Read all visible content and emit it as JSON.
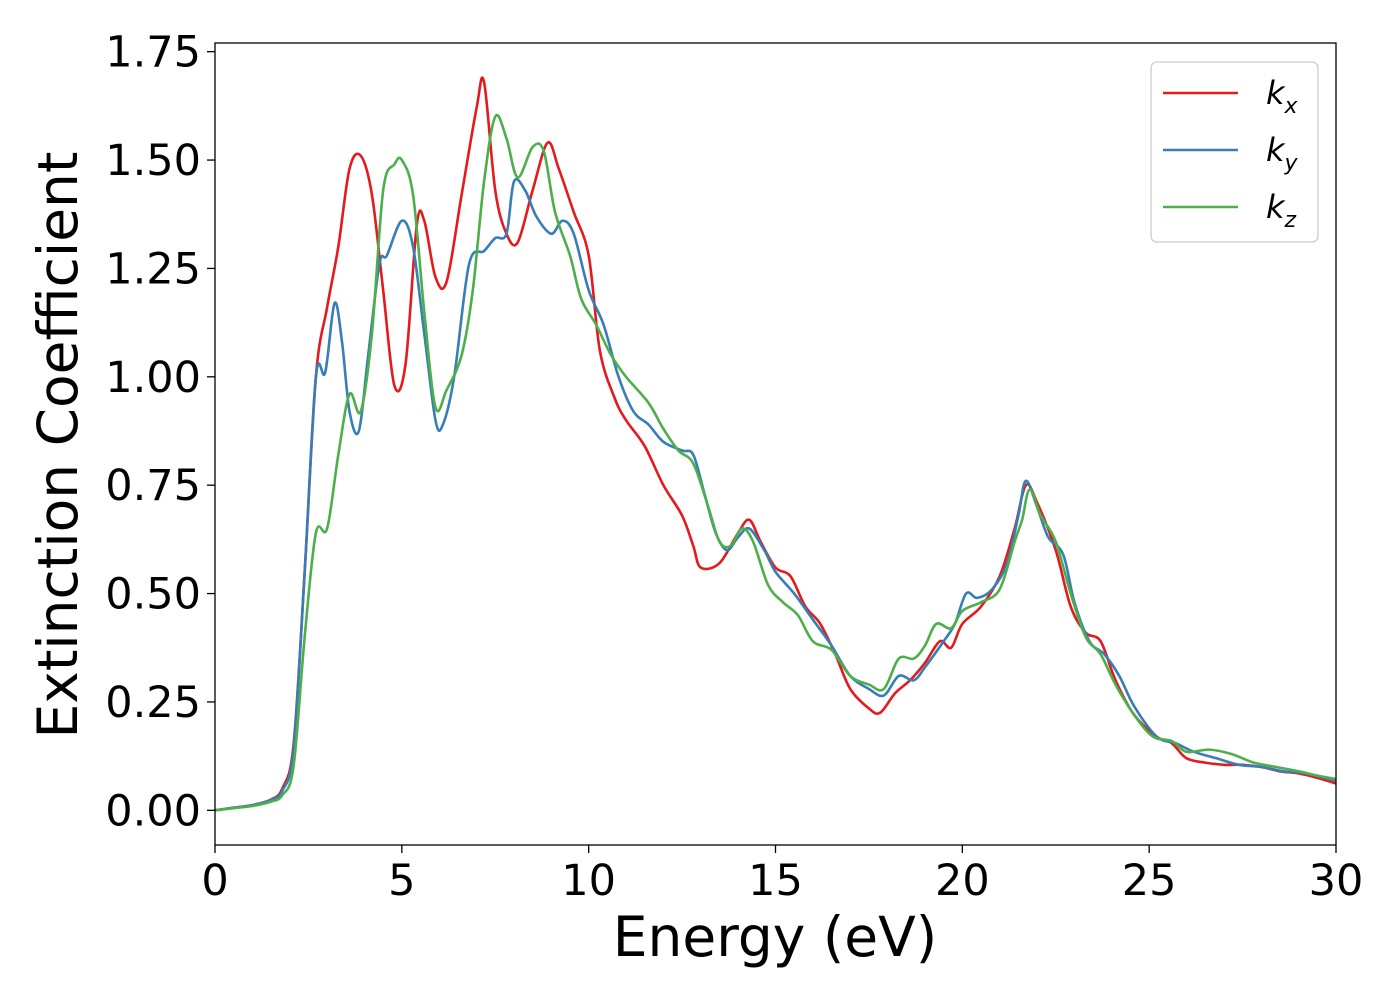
{
  "chart_data": {
    "type": "line",
    "xlabel": "Energy (eV)",
    "ylabel": "Extinction Coefficient",
    "xlim": [
      0,
      30
    ],
    "ylim": [
      -0.08,
      1.77
    ],
    "xticks": [
      0,
      5,
      10,
      15,
      20,
      25,
      30
    ],
    "xtick_labels": [
      "0",
      "5",
      "10",
      "15",
      "20",
      "25",
      "30"
    ],
    "yticks": [
      0.0,
      0.25,
      0.5,
      0.75,
      1.0,
      1.25,
      1.5,
      1.75
    ],
    "ytick_labels": [
      "0.00",
      "0.25",
      "0.50",
      "0.75",
      "1.00",
      "1.25",
      "1.50",
      "1.75"
    ],
    "grid": false,
    "legend_position": "top-right",
    "series": [
      {
        "name": "k",
        "subscript": "x",
        "color": "#e41a1c",
        "points": [
          [
            0,
            0
          ],
          [
            0.5,
            0.006
          ],
          [
            1,
            0.012
          ],
          [
            1.5,
            0.025
          ],
          [
            1.8,
            0.05
          ],
          [
            2.1,
            0.15
          ],
          [
            2.4,
            0.55
          ],
          [
            2.7,
            1.0
          ],
          [
            3.0,
            1.16
          ],
          [
            3.3,
            1.3
          ],
          [
            3.6,
            1.48
          ],
          [
            3.9,
            1.51
          ],
          [
            4.2,
            1.42
          ],
          [
            4.5,
            1.2
          ],
          [
            4.8,
            0.98
          ],
          [
            5.1,
            1.03
          ],
          [
            5.4,
            1.35
          ],
          [
            5.6,
            1.36
          ],
          [
            5.9,
            1.23
          ],
          [
            6.2,
            1.22
          ],
          [
            6.6,
            1.42
          ],
          [
            7.0,
            1.62
          ],
          [
            7.2,
            1.68
          ],
          [
            7.5,
            1.43
          ],
          [
            7.8,
            1.33
          ],
          [
            8.1,
            1.31
          ],
          [
            8.5,
            1.43
          ],
          [
            8.9,
            1.54
          ],
          [
            9.2,
            1.48
          ],
          [
            9.6,
            1.38
          ],
          [
            10.0,
            1.28
          ],
          [
            10.3,
            1.06
          ],
          [
            10.7,
            0.95
          ],
          [
            11.0,
            0.9
          ],
          [
            11.5,
            0.84
          ],
          [
            12.0,
            0.75
          ],
          [
            12.5,
            0.68
          ],
          [
            12.8,
            0.61
          ],
          [
            13.0,
            0.56
          ],
          [
            13.5,
            0.57
          ],
          [
            14.0,
            0.64
          ],
          [
            14.3,
            0.67
          ],
          [
            14.6,
            0.62
          ],
          [
            15.0,
            0.56
          ],
          [
            15.4,
            0.54
          ],
          [
            15.8,
            0.47
          ],
          [
            16.2,
            0.43
          ],
          [
            16.6,
            0.36
          ],
          [
            17.0,
            0.28
          ],
          [
            17.5,
            0.235
          ],
          [
            17.8,
            0.225
          ],
          [
            18.2,
            0.27
          ],
          [
            18.6,
            0.3
          ],
          [
            19.0,
            0.34
          ],
          [
            19.4,
            0.39
          ],
          [
            19.7,
            0.375
          ],
          [
            20.0,
            0.43
          ],
          [
            20.5,
            0.47
          ],
          [
            21.0,
            0.54
          ],
          [
            21.4,
            0.65
          ],
          [
            21.7,
            0.75
          ],
          [
            22.0,
            0.71
          ],
          [
            22.5,
            0.6
          ],
          [
            22.9,
            0.47
          ],
          [
            23.3,
            0.41
          ],
          [
            23.7,
            0.39
          ],
          [
            24.1,
            0.3
          ],
          [
            24.6,
            0.22
          ],
          [
            25.2,
            0.17
          ],
          [
            25.6,
            0.155
          ],
          [
            26.0,
            0.12
          ],
          [
            26.5,
            0.11
          ],
          [
            27.0,
            0.105
          ],
          [
            27.5,
            0.105
          ],
          [
            28.0,
            0.1
          ],
          [
            28.5,
            0.09
          ],
          [
            29.0,
            0.085
          ],
          [
            29.5,
            0.075
          ],
          [
            30,
            0.062
          ]
        ]
      },
      {
        "name": "k",
        "subscript": "y",
        "color": "#377eb8",
        "points": [
          [
            0,
            0
          ],
          [
            0.5,
            0.006
          ],
          [
            1,
            0.012
          ],
          [
            1.5,
            0.024
          ],
          [
            1.8,
            0.045
          ],
          [
            2.1,
            0.14
          ],
          [
            2.4,
            0.55
          ],
          [
            2.7,
            1.0
          ],
          [
            2.95,
            1.01
          ],
          [
            3.2,
            1.17
          ],
          [
            3.4,
            1.08
          ],
          [
            3.6,
            0.92
          ],
          [
            3.85,
            0.875
          ],
          [
            4.1,
            1.05
          ],
          [
            4.4,
            1.26
          ],
          [
            4.6,
            1.28
          ],
          [
            5.0,
            1.36
          ],
          [
            5.3,
            1.3
          ],
          [
            5.6,
            1.1
          ],
          [
            5.9,
            0.9
          ],
          [
            6.1,
            0.89
          ],
          [
            6.4,
            1.0
          ],
          [
            6.8,
            1.26
          ],
          [
            7.2,
            1.29
          ],
          [
            7.5,
            1.32
          ],
          [
            7.8,
            1.33
          ],
          [
            8.0,
            1.45
          ],
          [
            8.3,
            1.43
          ],
          [
            8.6,
            1.37
          ],
          [
            9.0,
            1.33
          ],
          [
            9.3,
            1.36
          ],
          [
            9.6,
            1.33
          ],
          [
            10.0,
            1.2
          ],
          [
            10.4,
            1.12
          ],
          [
            10.8,
            1.0
          ],
          [
            11.2,
            0.92
          ],
          [
            11.6,
            0.89
          ],
          [
            12.0,
            0.85
          ],
          [
            12.5,
            0.83
          ],
          [
            12.8,
            0.82
          ],
          [
            13.1,
            0.73
          ],
          [
            13.4,
            0.64
          ],
          [
            13.7,
            0.6
          ],
          [
            14.0,
            0.63
          ],
          [
            14.3,
            0.65
          ],
          [
            14.7,
            0.6
          ],
          [
            15.0,
            0.55
          ],
          [
            15.5,
            0.5
          ],
          [
            16.0,
            0.44
          ],
          [
            16.5,
            0.38
          ],
          [
            17.0,
            0.31
          ],
          [
            17.5,
            0.28
          ],
          [
            17.9,
            0.265
          ],
          [
            18.3,
            0.31
          ],
          [
            18.7,
            0.3
          ],
          [
            19.0,
            0.33
          ],
          [
            19.5,
            0.39
          ],
          [
            19.8,
            0.43
          ],
          [
            20.1,
            0.5
          ],
          [
            20.4,
            0.49
          ],
          [
            20.8,
            0.51
          ],
          [
            21.2,
            0.57
          ],
          [
            21.5,
            0.68
          ],
          [
            21.7,
            0.76
          ],
          [
            22.0,
            0.7
          ],
          [
            22.3,
            0.63
          ],
          [
            22.7,
            0.59
          ],
          [
            23.0,
            0.48
          ],
          [
            23.4,
            0.39
          ],
          [
            23.8,
            0.36
          ],
          [
            24.2,
            0.31
          ],
          [
            24.6,
            0.24
          ],
          [
            25.2,
            0.17
          ],
          [
            25.7,
            0.155
          ],
          [
            26.2,
            0.135
          ],
          [
            26.8,
            0.12
          ],
          [
            27.4,
            0.105
          ],
          [
            28.0,
            0.1
          ],
          [
            28.6,
            0.09
          ],
          [
            29.2,
            0.085
          ],
          [
            30,
            0.068
          ]
        ]
      },
      {
        "name": "k",
        "subscript": "z",
        "color": "#4daf4a",
        "points": [
          [
            0,
            0
          ],
          [
            0.5,
            0.005
          ],
          [
            1,
            0.01
          ],
          [
            1.5,
            0.02
          ],
          [
            1.8,
            0.035
          ],
          [
            2.1,
            0.1
          ],
          [
            2.4,
            0.4
          ],
          [
            2.7,
            0.64
          ],
          [
            3.0,
            0.65
          ],
          [
            3.3,
            0.82
          ],
          [
            3.6,
            0.96
          ],
          [
            3.9,
            0.92
          ],
          [
            4.2,
            1.1
          ],
          [
            4.5,
            1.43
          ],
          [
            4.8,
            1.49
          ],
          [
            5.0,
            1.5
          ],
          [
            5.3,
            1.42
          ],
          [
            5.6,
            1.15
          ],
          [
            5.9,
            0.93
          ],
          [
            6.2,
            0.97
          ],
          [
            6.6,
            1.05
          ],
          [
            6.9,
            1.2
          ],
          [
            7.2,
            1.45
          ],
          [
            7.5,
            1.6
          ],
          [
            7.8,
            1.55
          ],
          [
            8.1,
            1.46
          ],
          [
            8.5,
            1.53
          ],
          [
            8.8,
            1.52
          ],
          [
            9.1,
            1.38
          ],
          [
            9.5,
            1.28
          ],
          [
            9.8,
            1.18
          ],
          [
            10.2,
            1.12
          ],
          [
            10.6,
            1.05
          ],
          [
            11.0,
            1.0
          ],
          [
            11.6,
            0.94
          ],
          [
            12.0,
            0.88
          ],
          [
            12.4,
            0.83
          ],
          [
            12.8,
            0.8
          ],
          [
            13.2,
            0.7
          ],
          [
            13.5,
            0.62
          ],
          [
            13.8,
            0.61
          ],
          [
            14.1,
            0.65
          ],
          [
            14.4,
            0.62
          ],
          [
            14.8,
            0.52
          ],
          [
            15.2,
            0.48
          ],
          [
            15.6,
            0.45
          ],
          [
            16.0,
            0.39
          ],
          [
            16.5,
            0.37
          ],
          [
            17.0,
            0.31
          ],
          [
            17.5,
            0.29
          ],
          [
            17.9,
            0.28
          ],
          [
            18.3,
            0.35
          ],
          [
            18.7,
            0.35
          ],
          [
            19.0,
            0.38
          ],
          [
            19.3,
            0.43
          ],
          [
            19.7,
            0.42
          ],
          [
            20.0,
            0.46
          ],
          [
            20.5,
            0.48
          ],
          [
            21.0,
            0.51
          ],
          [
            21.4,
            0.62
          ],
          [
            21.6,
            0.67
          ],
          [
            21.8,
            0.74
          ],
          [
            22.1,
            0.68
          ],
          [
            22.5,
            0.62
          ],
          [
            22.9,
            0.5
          ],
          [
            23.3,
            0.4
          ],
          [
            23.7,
            0.36
          ],
          [
            24.1,
            0.29
          ],
          [
            24.6,
            0.22
          ],
          [
            25.1,
            0.17
          ],
          [
            25.6,
            0.16
          ],
          [
            26.0,
            0.135
          ],
          [
            26.6,
            0.14
          ],
          [
            27.2,
            0.13
          ],
          [
            27.8,
            0.11
          ],
          [
            28.4,
            0.1
          ],
          [
            29.0,
            0.09
          ],
          [
            29.5,
            0.08
          ],
          [
            30,
            0.072
          ]
        ]
      }
    ]
  }
}
